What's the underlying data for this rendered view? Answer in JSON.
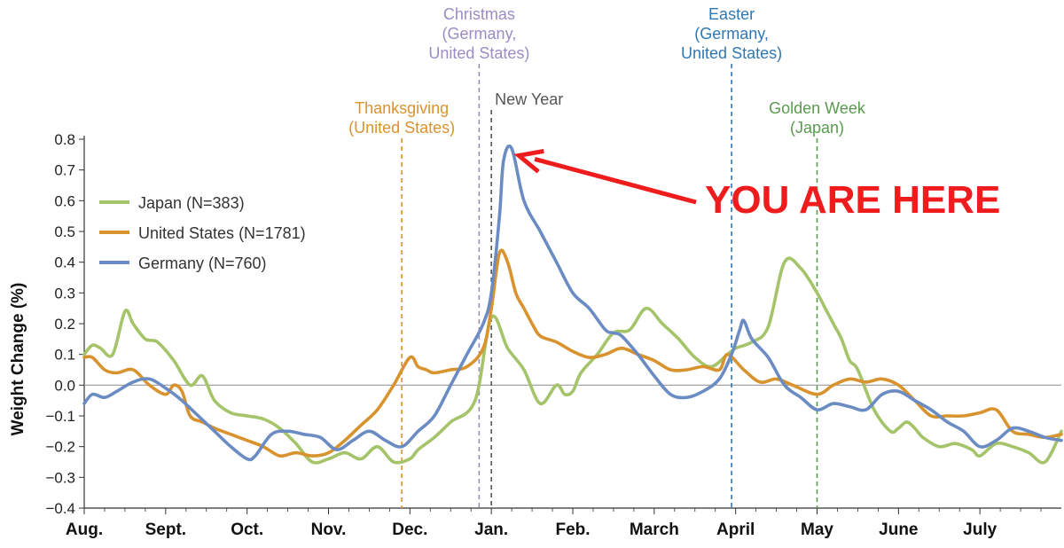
{
  "chart_data": {
    "type": "line",
    "title": "",
    "xlabel": "",
    "ylabel": "Weight Change (%)",
    "ylim": [
      -0.4,
      0.8
    ],
    "yticks": [
      "0.8",
      "0.7",
      "0.6",
      "0.5",
      "0.4",
      "0.3",
      "0.2",
      "0.1",
      "0.0",
      "−0.1",
      "−0.2",
      "−0.3",
      "−0.4"
    ],
    "x_unit": "months since Aug. 1",
    "xlim": [
      0,
      12
    ],
    "months": [
      "Aug.",
      "Sept.",
      "Oct.",
      "Nov.",
      "Dec.",
      "Jan.",
      "Feb.",
      "March",
      "April",
      "May",
      "June",
      "July"
    ],
    "grid": false,
    "zero_line": true,
    "legend_placement": "top-left",
    "series": [
      {
        "name": "Japan (N=383)",
        "color": "#a5c46a",
        "x": [
          0.0,
          0.1,
          0.2,
          0.35,
          0.5,
          0.6,
          0.75,
          0.9,
          1.1,
          1.3,
          1.45,
          1.6,
          1.8,
          2.0,
          2.2,
          2.4,
          2.6,
          2.8,
          3.0,
          3.2,
          3.4,
          3.6,
          3.8,
          4.0,
          4.1,
          4.3,
          4.5,
          4.8,
          5.0,
          5.2,
          5.4,
          5.6,
          5.8,
          5.9,
          6.0,
          6.1,
          6.3,
          6.5,
          6.7,
          6.9,
          7.1,
          7.3,
          7.5,
          7.7,
          7.9,
          8.0,
          8.2,
          8.4,
          8.6,
          8.8,
          9.0,
          9.1,
          9.2,
          9.3,
          9.4,
          9.5,
          9.7,
          9.9,
          10.0,
          10.1,
          10.2,
          10.3,
          10.5,
          10.7,
          10.9,
          11.0,
          11.2,
          11.4,
          11.6,
          11.8,
          12.0
        ],
        "y": [
          0.1,
          0.13,
          0.12,
          0.1,
          0.24,
          0.2,
          0.15,
          0.14,
          0.08,
          0.0,
          0.03,
          -0.05,
          -0.09,
          -0.1,
          -0.11,
          -0.14,
          -0.19,
          -0.25,
          -0.24,
          -0.22,
          -0.24,
          -0.2,
          -0.25,
          -0.24,
          -0.21,
          -0.17,
          -0.12,
          -0.05,
          0.22,
          0.12,
          0.05,
          -0.06,
          0.0,
          -0.03,
          -0.02,
          0.04,
          0.1,
          0.17,
          0.18,
          0.25,
          0.2,
          0.15,
          0.09,
          0.06,
          0.1,
          0.12,
          0.14,
          0.19,
          0.4,
          0.38,
          0.3,
          0.25,
          0.2,
          0.15,
          0.08,
          0.05,
          -0.08,
          -0.15,
          -0.14,
          -0.12,
          -0.14,
          -0.17,
          -0.2,
          -0.19,
          -0.21,
          -0.23,
          -0.19,
          -0.2,
          -0.22,
          -0.25,
          -0.15
        ]
      },
      {
        "name": "United States (N=1781)",
        "color": "#d9932e",
        "x": [
          0.0,
          0.1,
          0.25,
          0.4,
          0.6,
          0.8,
          1.0,
          1.1,
          1.2,
          1.3,
          1.45,
          1.6,
          1.8,
          2.0,
          2.2,
          2.4,
          2.6,
          2.8,
          3.0,
          3.2,
          3.4,
          3.6,
          3.8,
          4.0,
          4.1,
          4.2,
          4.3,
          4.5,
          4.7,
          4.9,
          5.0,
          5.1,
          5.2,
          5.3,
          5.4,
          5.5,
          5.6,
          5.8,
          6.0,
          6.2,
          6.4,
          6.6,
          6.8,
          7.0,
          7.2,
          7.4,
          7.6,
          7.8,
          7.9,
          8.1,
          8.3,
          8.5,
          8.7,
          9.0,
          9.2,
          9.4,
          9.6,
          9.8,
          10.0,
          10.2,
          10.4,
          10.6,
          10.8,
          11.0,
          11.2,
          11.4,
          11.6,
          11.8,
          12.0
        ],
        "y": [
          0.09,
          0.09,
          0.05,
          0.04,
          0.05,
          0.0,
          -0.03,
          0.0,
          -0.02,
          -0.1,
          -0.12,
          -0.14,
          -0.16,
          -0.18,
          -0.2,
          -0.23,
          -0.22,
          -0.23,
          -0.22,
          -0.18,
          -0.13,
          -0.08,
          0.0,
          0.09,
          0.06,
          0.05,
          0.04,
          0.05,
          0.06,
          0.12,
          0.25,
          0.43,
          0.4,
          0.3,
          0.25,
          0.2,
          0.16,
          0.14,
          0.11,
          0.09,
          0.1,
          0.12,
          0.1,
          0.08,
          0.05,
          0.05,
          0.06,
          0.05,
          0.1,
          0.05,
          0.01,
          0.02,
          0.0,
          -0.03,
          0.0,
          0.02,
          0.01,
          0.02,
          0.0,
          -0.05,
          -0.1,
          -0.1,
          -0.1,
          -0.09,
          -0.08,
          -0.15,
          -0.16,
          -0.17,
          -0.16
        ]
      },
      {
        "name": "Germany (N=760)",
        "color": "#6b8cc3",
        "x": [
          0.0,
          0.1,
          0.25,
          0.4,
          0.6,
          0.8,
          1.0,
          1.2,
          1.4,
          1.6,
          1.8,
          2.0,
          2.1,
          2.3,
          2.5,
          2.7,
          2.9,
          3.1,
          3.3,
          3.5,
          3.7,
          3.9,
          4.1,
          4.3,
          4.5,
          4.7,
          4.9,
          5.0,
          5.1,
          5.15,
          5.25,
          5.4,
          5.6,
          5.8,
          6.0,
          6.2,
          6.4,
          6.5,
          6.6,
          6.8,
          7.0,
          7.2,
          7.4,
          7.6,
          7.8,
          7.95,
          8.05,
          8.1,
          8.2,
          8.4,
          8.6,
          8.8,
          9.0,
          9.2,
          9.4,
          9.6,
          9.8,
          10.0,
          10.2,
          10.4,
          10.6,
          10.8,
          11.0,
          11.2,
          11.4,
          11.6,
          11.8,
          12.0
        ],
        "y": [
          -0.06,
          -0.03,
          -0.04,
          -0.02,
          0.01,
          0.02,
          -0.01,
          -0.05,
          -0.1,
          -0.15,
          -0.2,
          -0.24,
          -0.23,
          -0.16,
          -0.15,
          -0.16,
          -0.17,
          -0.21,
          -0.18,
          -0.15,
          -0.18,
          -0.2,
          -0.15,
          -0.1,
          0.0,
          0.1,
          0.2,
          0.3,
          0.55,
          0.73,
          0.77,
          0.6,
          0.5,
          0.4,
          0.3,
          0.25,
          0.18,
          0.17,
          0.16,
          0.1,
          0.03,
          -0.03,
          -0.04,
          -0.02,
          0.02,
          0.1,
          0.18,
          0.21,
          0.15,
          0.09,
          0.0,
          -0.04,
          -0.08,
          -0.06,
          -0.07,
          -0.08,
          -0.03,
          -0.02,
          -0.05,
          -0.08,
          -0.12,
          -0.15,
          -0.2,
          -0.18,
          -0.14,
          -0.15,
          -0.17,
          -0.18
        ]
      }
    ],
    "events": [
      {
        "label": [
          "Thanksgiving",
          "(United States)"
        ],
        "x": 3.9,
        "color": "#d9932e"
      },
      {
        "label": [
          "Christmas",
          "(Germany,",
          "United States)"
        ],
        "x": 4.85,
        "color": "#9b8cc4"
      },
      {
        "label": [
          "New Year"
        ],
        "x": 5.0,
        "color": "#555555"
      },
      {
        "label": [
          "Easter",
          "(Germany,",
          "United States)"
        ],
        "x": 7.95,
        "color": "#2f78b5"
      },
      {
        "label": [
          "Golden Week",
          "(Japan)"
        ],
        "x": 9.0,
        "color": "#5a9a50"
      }
    ]
  },
  "annotation": {
    "text": "YOU ARE HERE",
    "color": "#ee1c1c",
    "points_to_series": "Germany (N=760)"
  }
}
